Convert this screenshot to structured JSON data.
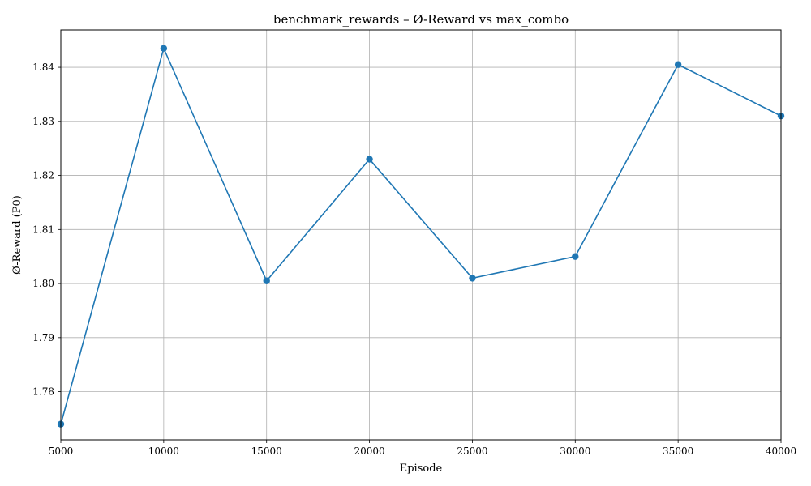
{
  "chart_data": {
    "type": "line",
    "title": "benchmark_rewards – Ø-Reward vs max_combo",
    "xlabel": "Episode",
    "ylabel": "Ø-Reward (P0)",
    "x": [
      5000,
      10000,
      15000,
      20000,
      25000,
      30000,
      35000,
      40000
    ],
    "series": [
      {
        "values": [
          1.774,
          1.8435,
          1.8005,
          1.823,
          1.801,
          1.805,
          1.8405,
          1.831
        ],
        "color": "#1f77b4",
        "marker": "circle"
      }
    ],
    "xlim": [
      5000,
      40000
    ],
    "ylim": [
      1.7711,
      1.8469
    ],
    "xticks": [
      "5000",
      "10000",
      "15000",
      "20000",
      "25000",
      "30000",
      "35000",
      "40000"
    ],
    "yticks": [
      "1.78",
      "1.79",
      "1.80",
      "1.81",
      "1.82",
      "1.83",
      "1.84"
    ],
    "grid": true,
    "grid_color": "#b0b0b0"
  }
}
